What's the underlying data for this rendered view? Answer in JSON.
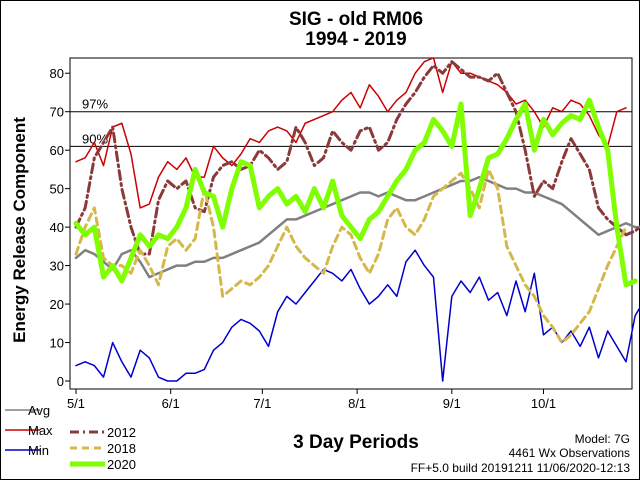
{
  "chart_data": {
    "type": "line",
    "title": "SIG - old RM06",
    "subtitle": "1994 - 2019",
    "xlabel": "3 Day Periods",
    "ylabel": "Energy Release Component",
    "ylim": [
      0,
      85
    ],
    "yticks": [
      0,
      10,
      20,
      30,
      40,
      50,
      60,
      70,
      80
    ],
    "x_tick_labels": [
      "5/1",
      "6/1",
      "7/1",
      "8/1",
      "9/1",
      "10/1"
    ],
    "x_tick_positions": [
      0,
      10.33,
      20.33,
      30.67,
      41,
      51
    ],
    "xlim": [
      0,
      60
    ],
    "grid": false,
    "reference_lines": [
      {
        "label": "97%",
        "value": 70,
        "color": "#000000"
      },
      {
        "label": "90%",
        "value": 61,
        "color": "#000000"
      }
    ],
    "series": [
      {
        "name": "Avg",
        "color": "#808080",
        "style": "solid",
        "values": [
          32,
          34,
          33,
          31,
          29,
          33,
          34,
          31,
          27,
          28,
          29,
          30,
          30,
          31,
          31,
          32,
          32,
          33,
          34,
          35,
          36,
          38,
          40,
          42,
          42,
          43,
          44,
          45,
          46,
          47,
          48,
          49,
          49,
          48,
          49,
          48,
          47,
          47,
          48,
          49,
          50,
          51,
          52,
          52,
          53,
          52,
          51,
          50,
          50,
          49,
          49,
          48,
          47,
          46,
          44,
          42,
          40,
          38,
          39,
          40,
          41,
          40,
          40
        ]
      },
      {
        "name": "Max",
        "color": "#cc0000",
        "style": "solid",
        "values": [
          57,
          58,
          62,
          56,
          66,
          67,
          59,
          45,
          46,
          53,
          57,
          55,
          58,
          53,
          53,
          61,
          58,
          56,
          59,
          63,
          62,
          65,
          66,
          65,
          62,
          67,
          68,
          69,
          70,
          73,
          75,
          71,
          77,
          74,
          70,
          73,
          75,
          80,
          83,
          84,
          75,
          83,
          80,
          80,
          79,
          78,
          77,
          75,
          72,
          73,
          70,
          66,
          71,
          70,
          73,
          72,
          69,
          64,
          61,
          70,
          71
        ]
      },
      {
        "name": "Min",
        "color": "#0000cc",
        "style": "solid",
        "values": [
          4,
          5,
          4,
          1,
          10,
          5,
          1,
          8,
          6,
          1,
          0,
          0,
          2,
          2,
          3,
          8,
          10,
          14,
          16,
          15,
          13,
          9,
          18,
          22,
          20,
          23,
          26,
          29,
          28,
          26,
          29,
          24,
          20,
          22,
          25,
          22,
          31,
          34,
          30,
          27,
          0,
          22,
          26,
          23,
          27,
          21,
          23,
          17,
          26,
          18,
          28,
          12,
          14,
          10,
          13,
          9,
          14,
          6,
          13,
          9,
          5,
          17,
          21
        ]
      },
      {
        "name": "2012",
        "color": "#8b3a3a",
        "style": "dashdot",
        "values": [
          40,
          45,
          58,
          62,
          66,
          50,
          40,
          33,
          33,
          47,
          52,
          50,
          52,
          45,
          44,
          53,
          56,
          57,
          55,
          56,
          60,
          58,
          55,
          57,
          66,
          62,
          56,
          58,
          65,
          62,
          60,
          65,
          66,
          60,
          62,
          68,
          72,
          75,
          79,
          82,
          80,
          83,
          81,
          79,
          79,
          78,
          80,
          75,
          70,
          60,
          48,
          52,
          50,
          57,
          63,
          59,
          55,
          45,
          42,
          40,
          38,
          39,
          41
        ]
      },
      {
        "name": "2018",
        "color": "#d4b84a",
        "style": "dashed",
        "values": [
          33,
          40,
          45,
          32,
          30,
          30,
          28,
          34,
          30,
          25,
          35,
          37,
          34,
          37,
          50,
          40,
          22,
          24,
          26,
          25,
          27,
          30,
          35,
          40,
          35,
          32,
          30,
          28,
          35,
          40,
          38,
          32,
          28,
          33,
          42,
          45,
          40,
          38,
          42,
          48,
          50,
          52,
          54,
          50,
          45,
          55,
          50,
          35,
          30,
          25,
          22,
          17,
          14,
          10,
          12,
          15,
          18,
          24,
          30,
          35,
          40
        ]
      },
      {
        "name": "2020",
        "color": "#7fff00",
        "style": "solid",
        "values": [
          41,
          38,
          40,
          27,
          30,
          26,
          32,
          38,
          35,
          38,
          37,
          40,
          45,
          55,
          49,
          48,
          40,
          50,
          57,
          56,
          45,
          48,
          50,
          46,
          48,
          44,
          50,
          45,
          52,
          43,
          40,
          37,
          42,
          44,
          48,
          52,
          55,
          60,
          62,
          68,
          65,
          61,
          72,
          43,
          50,
          58,
          59,
          63,
          68,
          72,
          60,
          68,
          64,
          67,
          69,
          68,
          73,
          66,
          60,
          40,
          25,
          26
        ]
      }
    ]
  },
  "legend": {
    "items": [
      {
        "label": "Avg",
        "color": "#808080",
        "style": "solid"
      },
      {
        "label": "Max",
        "color": "#cc0000",
        "style": "solid"
      },
      {
        "label": "Min",
        "color": "#0000cc",
        "style": "solid"
      },
      {
        "label": "2012",
        "color": "#8b3a3a",
        "style": "dashdot"
      },
      {
        "label": "2018",
        "color": "#d4b84a",
        "style": "dashed"
      },
      {
        "label": "2020",
        "color": "#7fff00",
        "style": "solid"
      }
    ]
  },
  "footer": {
    "model": "Model: 7G",
    "observations": "4461 Wx Observations",
    "build": "FF+5.0 build 20191211 11/06/2020-12:13"
  }
}
